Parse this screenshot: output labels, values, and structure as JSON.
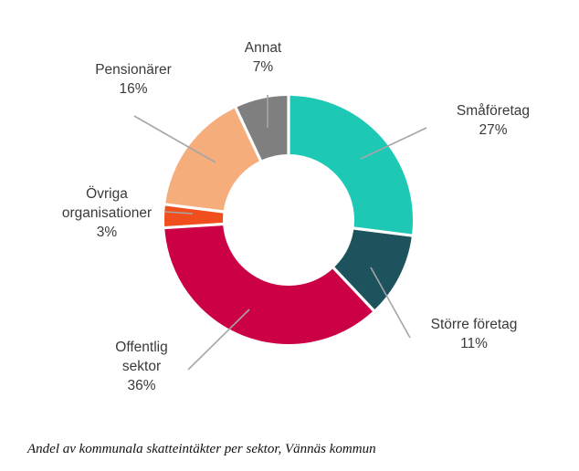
{
  "chart_data": {
    "type": "pie",
    "variant": "donut",
    "title": "",
    "caption": "Andel av kommunala skatteintäkter per sektor, Vännäs kommun",
    "unit": "%",
    "slices": [
      {
        "name": "Småföretag",
        "label_lines": [
          "Småföretag"
        ],
        "value": 27,
        "value_label": "27%",
        "color": "#1dc8b4"
      },
      {
        "name": "Större företag",
        "label_lines": [
          "Större företag"
        ],
        "value": 11,
        "value_label": "11%",
        "color": "#1d535d"
      },
      {
        "name": "Offentlig sektor",
        "label_lines": [
          "Offentlig",
          "sektor"
        ],
        "value": 36,
        "value_label": "36%",
        "color": "#cb0045"
      },
      {
        "name": "Övriga organisationer",
        "label_lines": [
          "Övriga",
          "organisationer"
        ],
        "value": 3,
        "value_label": "3%",
        "color": "#f04e1d"
      },
      {
        "name": "Pensionärer",
        "label_lines": [
          "Pensionärer"
        ],
        "value": 16,
        "value_label": "16%",
        "color": "#f5ad7c"
      },
      {
        "name": "Annat",
        "label_lines": [
          "Annat"
        ],
        "value": 7,
        "value_label": "7%",
        "color": "#7f7f7f"
      }
    ],
    "leader_line_color": "#a6a6a6"
  }
}
